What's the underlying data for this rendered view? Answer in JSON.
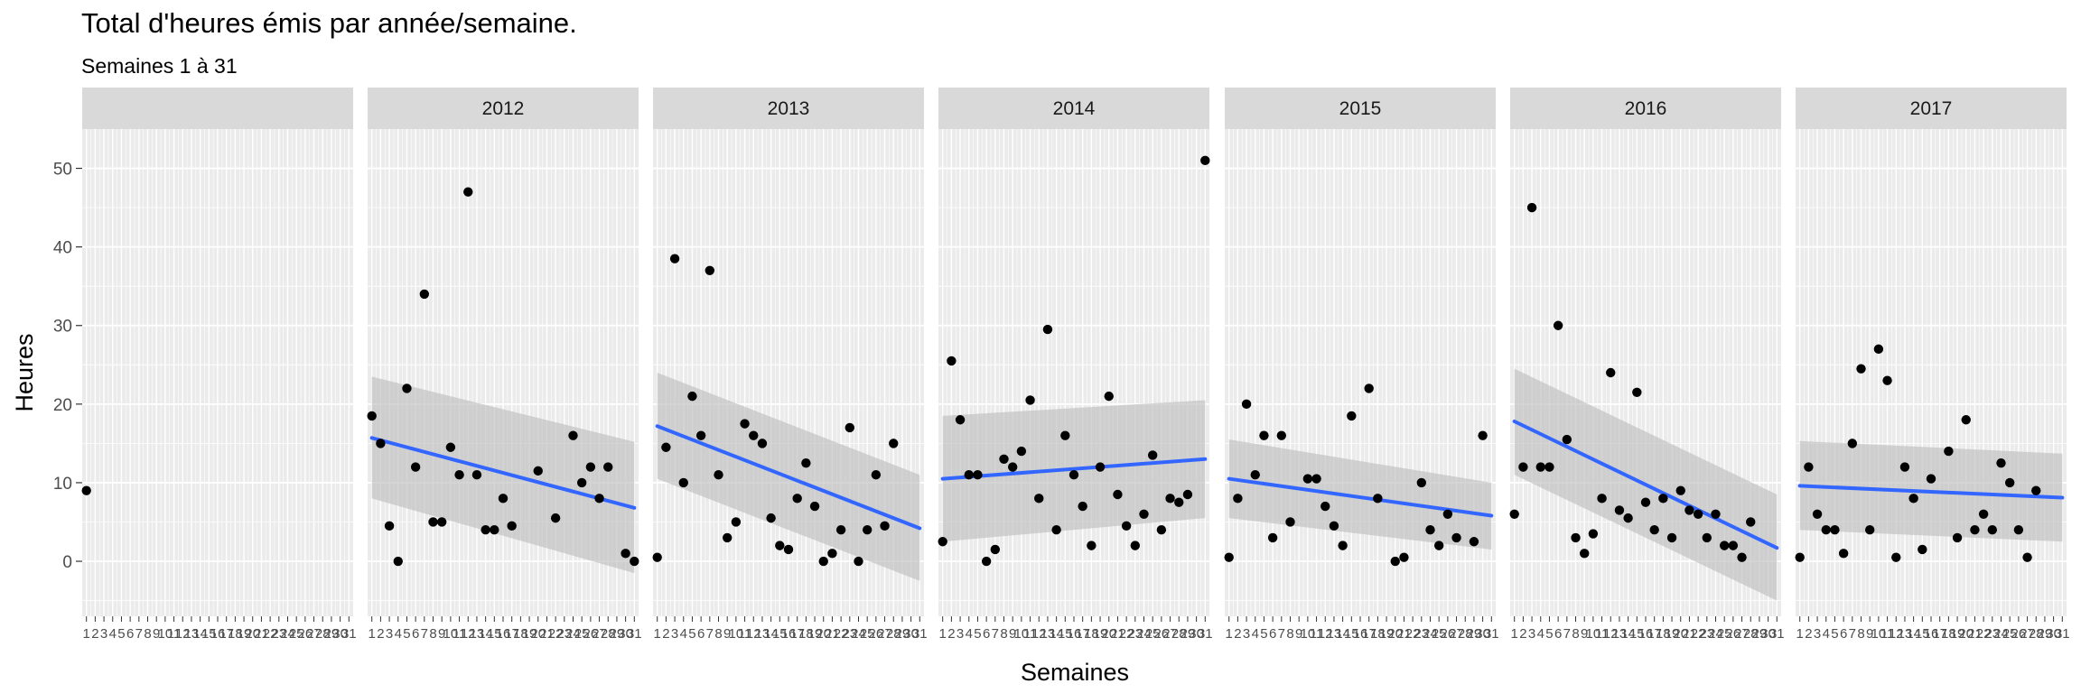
{
  "title": "Total d'heures émis par année/semaine.",
  "subtitle": "Semaines 1 à 31",
  "chart_data": {
    "type": "scatter",
    "facet_by": "year",
    "xlabel": "Semaines",
    "ylabel": "Heures",
    "xlim": [
      1,
      31
    ],
    "ylim": [
      -7,
      55
    ],
    "y_ticks": [
      0,
      10,
      20,
      30,
      40,
      50
    ],
    "x_tick_labels": [
      "1",
      "2",
      "3",
      "4",
      "5",
      "6",
      "7",
      "8",
      "9",
      "10",
      "11",
      "12",
      "13",
      "14",
      "15",
      "16",
      "17",
      "18",
      "19",
      "20",
      "21",
      "22",
      "23",
      "24",
      "25",
      "26",
      "27",
      "28",
      "29",
      "30",
      "31"
    ],
    "grid": true,
    "colors": {
      "points": "#000000",
      "trend": "#3366FF",
      "ribbon": "#BEBEBE",
      "panel_bg": "#EBEBEB",
      "strip_bg": "#D9D9D9",
      "grid": "#FFFFFF"
    },
    "panels": [
      {
        "label": "",
        "points": [
          [
            1,
            9
          ]
        ],
        "trend": null
      },
      {
        "label": "2012",
        "points": [
          [
            1,
            18.5
          ],
          [
            2,
            15
          ],
          [
            3,
            4.5
          ],
          [
            4,
            0
          ],
          [
            5,
            22
          ],
          [
            6,
            12
          ],
          [
            7,
            34
          ],
          [
            8,
            5
          ],
          [
            9,
            5
          ],
          [
            10,
            14.5
          ],
          [
            11,
            11
          ],
          [
            12,
            47
          ],
          [
            13,
            11
          ],
          [
            14,
            4
          ],
          [
            15,
            4
          ],
          [
            16,
            8
          ],
          [
            17,
            4.5
          ],
          [
            20,
            11.5
          ],
          [
            22,
            5.5
          ],
          [
            24,
            16
          ],
          [
            25,
            10
          ],
          [
            26,
            12
          ],
          [
            27,
            8
          ],
          [
            28,
            12
          ],
          [
            30,
            1
          ],
          [
            31,
            0
          ]
        ],
        "trend": {
          "y_start": 15.7,
          "y_end": 6.8,
          "ci_start": [
            8,
            23.5
          ],
          "ci_end": [
            -1.5,
            15.2
          ]
        }
      },
      {
        "label": "2013",
        "points": [
          [
            1,
            0.5
          ],
          [
            2,
            14.5
          ],
          [
            3,
            38.5
          ],
          [
            4,
            10
          ],
          [
            5,
            21
          ],
          [
            6,
            16
          ],
          [
            7,
            37
          ],
          [
            8,
            11
          ],
          [
            9,
            3
          ],
          [
            10,
            5
          ],
          [
            11,
            17.5
          ],
          [
            12,
            16
          ],
          [
            13,
            15
          ],
          [
            14,
            5.5
          ],
          [
            15,
            2
          ],
          [
            16,
            1.5
          ],
          [
            17,
            8
          ],
          [
            18,
            12.5
          ],
          [
            19,
            7
          ],
          [
            20,
            0
          ],
          [
            21,
            1
          ],
          [
            22,
            4
          ],
          [
            23,
            17
          ],
          [
            24,
            0
          ],
          [
            25,
            4
          ],
          [
            26,
            11
          ],
          [
            27,
            4.5
          ],
          [
            28,
            15
          ]
        ],
        "trend": {
          "y_start": 17.2,
          "y_end": 4.2,
          "ci_start": [
            10.5,
            24
          ],
          "ci_end": [
            -2.5,
            11
          ]
        }
      },
      {
        "label": "2014",
        "points": [
          [
            1,
            2.5
          ],
          [
            2,
            25.5
          ],
          [
            3,
            18
          ],
          [
            4,
            11
          ],
          [
            5,
            11
          ],
          [
            6,
            0
          ],
          [
            7,
            1.5
          ],
          [
            8,
            13
          ],
          [
            9,
            12
          ],
          [
            10,
            14
          ],
          [
            11,
            20.5
          ],
          [
            12,
            8
          ],
          [
            13,
            29.5
          ],
          [
            14,
            4
          ],
          [
            15,
            16
          ],
          [
            16,
            11
          ],
          [
            17,
            7
          ],
          [
            18,
            2
          ],
          [
            19,
            12
          ],
          [
            20,
            21
          ],
          [
            21,
            8.5
          ],
          [
            22,
            4.5
          ],
          [
            23,
            2
          ],
          [
            24,
            6
          ],
          [
            25,
            13.5
          ],
          [
            26,
            4
          ],
          [
            27,
            8
          ],
          [
            28,
            7.5
          ],
          [
            29,
            8.5
          ],
          [
            31,
            51
          ]
        ],
        "trend": {
          "y_start": 10.5,
          "y_end": 13,
          "ci_start": [
            2.5,
            18.5
          ],
          "ci_end": [
            5.5,
            20.5
          ]
        }
      },
      {
        "label": "2015",
        "points": [
          [
            1,
            0.5
          ],
          [
            2,
            8
          ],
          [
            3,
            20
          ],
          [
            4,
            11
          ],
          [
            5,
            16
          ],
          [
            6,
            3
          ],
          [
            7,
            16
          ],
          [
            8,
            5
          ],
          [
            10,
            10.5
          ],
          [
            11,
            10.5
          ],
          [
            12,
            7
          ],
          [
            13,
            4.5
          ],
          [
            14,
            2
          ],
          [
            15,
            18.5
          ],
          [
            17,
            22
          ],
          [
            18,
            8
          ],
          [
            20,
            0
          ],
          [
            21,
            0.5
          ],
          [
            23,
            10
          ],
          [
            24,
            4
          ],
          [
            25,
            2
          ],
          [
            26,
            6
          ],
          [
            27,
            3
          ],
          [
            29,
            2.5
          ],
          [
            30,
            16
          ]
        ],
        "trend": {
          "y_start": 10.5,
          "y_end": 5.8,
          "ci_start": [
            5.5,
            15.5
          ],
          "ci_end": [
            1.5,
            10
          ]
        }
      },
      {
        "label": "2016",
        "points": [
          [
            1,
            6
          ],
          [
            2,
            12
          ],
          [
            3,
            45
          ],
          [
            4,
            12
          ],
          [
            5,
            12
          ],
          [
            6,
            30
          ],
          [
            7,
            15.5
          ],
          [
            8,
            3
          ],
          [
            9,
            1
          ],
          [
            10,
            3.5
          ],
          [
            11,
            8
          ],
          [
            12,
            24
          ],
          [
            13,
            6.5
          ],
          [
            14,
            5.5
          ],
          [
            15,
            21.5
          ],
          [
            16,
            7.5
          ],
          [
            17,
            4
          ],
          [
            18,
            8
          ],
          [
            19,
            3
          ],
          [
            20,
            9
          ],
          [
            21,
            6.5
          ],
          [
            22,
            6
          ],
          [
            23,
            3
          ],
          [
            24,
            6
          ],
          [
            25,
            2
          ],
          [
            26,
            2
          ],
          [
            27,
            0.5
          ],
          [
            28,
            5
          ]
        ],
        "trend": {
          "y_start": 17.8,
          "y_end": 1.7,
          "ci_start": [
            11,
            24.5
          ],
          "ci_end": [
            -5,
            8.5
          ]
        }
      },
      {
        "label": "2017",
        "points": [
          [
            1,
            0.5
          ],
          [
            2,
            12
          ],
          [
            3,
            6
          ],
          [
            4,
            4
          ],
          [
            5,
            4
          ],
          [
            6,
            1
          ],
          [
            7,
            15
          ],
          [
            8,
            24.5
          ],
          [
            9,
            4
          ],
          [
            10,
            27
          ],
          [
            11,
            23
          ],
          [
            12,
            0.5
          ],
          [
            13,
            12
          ],
          [
            14,
            8
          ],
          [
            15,
            1.5
          ],
          [
            16,
            10.5
          ],
          [
            18,
            14
          ],
          [
            19,
            3
          ],
          [
            20,
            18
          ],
          [
            21,
            4
          ],
          [
            22,
            6
          ],
          [
            23,
            4
          ],
          [
            24,
            12.5
          ],
          [
            25,
            10
          ],
          [
            26,
            4
          ],
          [
            27,
            0.5
          ],
          [
            28,
            9
          ]
        ],
        "trend": {
          "y_start": 9.6,
          "y_end": 8.1,
          "ci_start": [
            4,
            15.3
          ],
          "ci_end": [
            2.5,
            13.7
          ]
        }
      }
    ]
  }
}
